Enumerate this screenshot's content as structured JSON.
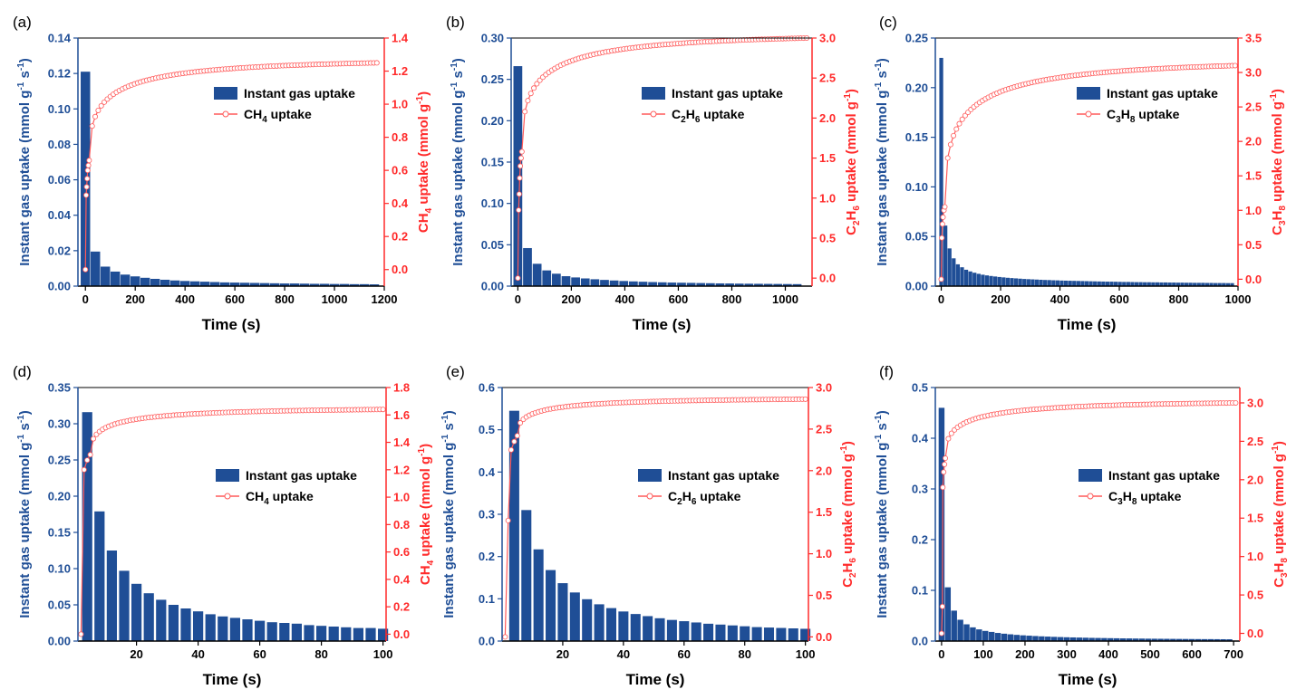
{
  "chart_data": [
    {
      "type": "bar",
      "panel_label": "(a)",
      "xlabel": "Time (s)",
      "ylabel_left": {
        "pre": "Instant gas uptake (mmol g",
        "sup1": "-1",
        "mid": " s",
        "sup2": "-1",
        "post": ")"
      },
      "ylabel_right": {
        "species": "CH",
        "sub": "4",
        "pre": " uptake (mmol g",
        "sup": "-1",
        "post": ")"
      },
      "xlim": [
        -30,
        1200
      ],
      "xticks": [
        0,
        200,
        400,
        600,
        800,
        1000,
        1200
      ],
      "ylim_left": [
        0,
        0.14
      ],
      "yticks_left": [
        0.0,
        0.02,
        0.04,
        0.06,
        0.08,
        0.1,
        0.12,
        0.14
      ],
      "ylim_right": [
        -0.1,
        1.4
      ],
      "yticks_right": [
        0.0,
        0.2,
        0.4,
        0.6,
        0.8,
        1.0,
        1.2,
        1.4
      ],
      "legend": {
        "bar": "Instant gas uptake",
        "line_species": "CH",
        "line_sub": "4",
        "line_post": " uptake",
        "position": "upper-right"
      },
      "bars": {
        "width": 38,
        "x_start": 0,
        "x_step": 40,
        "count": 30,
        "values": [
          0.121,
          0.0195,
          0.011,
          0.0082,
          0.0065,
          0.0055,
          0.0047,
          0.0041,
          0.0036,
          0.0032,
          0.0029,
          0.0027,
          0.0025,
          0.0023,
          0.0021,
          0.002,
          0.0019,
          0.0018,
          0.0017,
          0.0016,
          0.0015,
          0.0015,
          0.0014,
          0.0013,
          0.0013,
          0.0012,
          0.0012,
          0.0011,
          0.0011,
          0.001
        ]
      },
      "uptake_curve": {
        "x_max": 1170,
        "y_max": 1.25,
        "initial_points": [
          [
            0,
            0.0
          ],
          [
            3,
            0.45
          ],
          [
            5,
            0.5
          ],
          [
            7,
            0.55
          ],
          [
            9,
            0.6
          ],
          [
            12,
            0.63
          ],
          [
            15,
            0.66
          ]
        ],
        "markers": 95
      }
    },
    {
      "type": "bar",
      "panel_label": "(b)",
      "xlabel": "Time (s)",
      "ylabel_left": {
        "pre": "Instant gas uptake (mmol g",
        "sup1": "-1",
        "mid": " s",
        "sup2": "-1",
        "post": ")"
      },
      "ylabel_right": {
        "species": "C",
        "sub": "2",
        "species2": "H",
        "sub2": "6",
        "pre": " uptake (mmol g",
        "sup": "-1",
        "post": ")"
      },
      "xlim": [
        -25,
        1100
      ],
      "xticks": [
        0,
        200,
        400,
        600,
        800,
        1000
      ],
      "ylim_left": [
        0,
        0.3
      ],
      "yticks_left": [
        0.0,
        0.05,
        0.1,
        0.15,
        0.2,
        0.25,
        0.3
      ],
      "ylim_right": [
        -0.1,
        3.0
      ],
      "yticks_right": [
        0.0,
        0.5,
        1.0,
        1.5,
        2.0,
        2.5,
        3.0
      ],
      "legend": {
        "bar": "Instant gas uptake",
        "line_species": "C",
        "line_sub": "2",
        "line_species2": "H",
        "line_sub2": "6",
        "line_post": " uptake",
        "position": "upper-right"
      },
      "bars": {
        "width": 33,
        "x_start": 0,
        "x_step": 36,
        "count": 30,
        "values": [
          0.266,
          0.046,
          0.027,
          0.019,
          0.015,
          0.012,
          0.0105,
          0.0093,
          0.0083,
          0.0075,
          0.0068,
          0.0062,
          0.0057,
          0.0053,
          0.0049,
          0.0046,
          0.0043,
          0.0041,
          0.0039,
          0.0037,
          0.0035,
          0.0033,
          0.0032,
          0.003,
          0.0029,
          0.0028,
          0.0027,
          0.0026,
          0.0025,
          0.0024
        ]
      },
      "uptake_curve": {
        "x_max": 1080,
        "y_max": 3.0,
        "initial_points": [
          [
            0,
            0.0
          ],
          [
            3,
            0.85
          ],
          [
            5,
            1.05
          ],
          [
            7,
            1.25
          ],
          [
            9,
            1.4
          ],
          [
            12,
            1.5
          ],
          [
            15,
            1.58
          ]
        ],
        "markers": 95
      }
    },
    {
      "type": "bar",
      "panel_label": "(c)",
      "xlabel": "Time (s)",
      "ylabel_left": {
        "pre": "Instant gas uptake (mmol g",
        "sup1": "-1",
        "mid": " s",
        "sup2": "-1",
        "post": ")"
      },
      "ylabel_right": {
        "species": "C",
        "sub": "3",
        "species2": "H",
        "sub2": "8",
        "pre": " uptake (mmol g",
        "sup": "-1",
        "post": ")"
      },
      "xlim": [
        -20,
        1000
      ],
      "xticks": [
        0,
        200,
        400,
        600,
        800,
        1000
      ],
      "ylim_left": [
        0,
        0.25
      ],
      "yticks_left": [
        0.0,
        0.05,
        0.1,
        0.15,
        0.2,
        0.25
      ],
      "ylim_right": [
        -0.1,
        3.5
      ],
      "yticks_right": [
        0.0,
        0.5,
        1.0,
        1.5,
        2.0,
        2.5,
        3.0,
        3.5
      ],
      "legend": {
        "bar": "Instant gas uptake",
        "line_species": "C",
        "line_sub": "3",
        "line_species2": "H",
        "line_sub2": "8",
        "line_post": " uptake",
        "position": "upper-right"
      },
      "bars": {
        "width": 13,
        "x_start": 0,
        "x_step": 14,
        "count": 71,
        "values": [
          0.23,
          0.061,
          0.038,
          0.028,
          0.022,
          0.019,
          0.0165,
          0.0148,
          0.0135,
          0.0124,
          0.0115,
          0.0108,
          0.0102,
          0.0097,
          0.0092,
          0.0088,
          0.0084,
          0.0081,
          0.0078,
          0.0075,
          0.0072,
          0.007,
          0.0068,
          0.0066,
          0.0064,
          0.0062,
          0.0061,
          0.0059,
          0.0058,
          0.0056,
          0.0055,
          0.0054,
          0.0053,
          0.0052,
          0.0051,
          0.005,
          0.0049,
          0.0048,
          0.0047,
          0.0046,
          0.0045,
          0.0045,
          0.0044,
          0.0043,
          0.0042,
          0.0042,
          0.0041,
          0.004,
          0.004,
          0.0039,
          0.0039,
          0.0038,
          0.0038,
          0.0037,
          0.0037,
          0.0036,
          0.0036,
          0.0035,
          0.0035,
          0.0034,
          0.0034,
          0.0033,
          0.0033,
          0.0033,
          0.0032,
          0.0032,
          0.0031,
          0.0031,
          0.0031,
          0.003,
          0.003
        ]
      },
      "uptake_curve": {
        "x_max": 990,
        "y_max": 3.1,
        "initial_points": [
          [
            0,
            0.0
          ],
          [
            2,
            0.6
          ],
          [
            4,
            0.8
          ],
          [
            6,
            0.9
          ],
          [
            9,
            1.0
          ],
          [
            12,
            1.05
          ]
        ],
        "markers": 100
      }
    },
    {
      "type": "bar",
      "panel_label": "(d)",
      "xlabel": "Time (s)",
      "ylabel_left": {
        "pre": "Instant gas uptake (mmol g",
        "sup1": "-1",
        "mid": " s",
        "sup2": "-1",
        "post": ")"
      },
      "ylabel_right": {
        "species": "CH",
        "sub": "4",
        "pre": " uptake (mmol g",
        "sup": "-1",
        "post": ")"
      },
      "xlim": [
        1,
        101
      ],
      "xticks": [
        20,
        40,
        60,
        80,
        100
      ],
      "ylim_left": [
        0,
        0.35
      ],
      "yticks_left": [
        0.0,
        0.05,
        0.1,
        0.15,
        0.2,
        0.25,
        0.3,
        0.35
      ],
      "ylim_right": [
        -0.05,
        1.8
      ],
      "yticks_right": [
        0.0,
        0.2,
        0.4,
        0.6,
        0.8,
        1.0,
        1.2,
        1.4,
        1.6,
        1.8
      ],
      "legend": {
        "bar": "Instant gas uptake",
        "line_species": "CH",
        "line_sub": "4",
        "line_post": " uptake",
        "position": "upper-right"
      },
      "bars": {
        "width": 3.3,
        "x_start": 4,
        "x_step": 4,
        "count": 25,
        "values": [
          0.316,
          0.179,
          0.125,
          0.097,
          0.079,
          0.066,
          0.057,
          0.05,
          0.045,
          0.041,
          0.037,
          0.034,
          0.032,
          0.03,
          0.028,
          0.026,
          0.025,
          0.024,
          0.022,
          0.021,
          0.02,
          0.019,
          0.018,
          0.018,
          0.017
        ]
      },
      "uptake_curve": {
        "x_max": 100,
        "y_max": 1.64,
        "initial_points": [
          [
            2,
            0.0
          ],
          [
            3,
            1.2
          ],
          [
            4,
            1.27
          ],
          [
            5,
            1.31
          ]
        ],
        "markers": 95
      }
    },
    {
      "type": "bar",
      "panel_label": "(e)",
      "xlabel": "Time (s)",
      "ylabel_left": {
        "pre": "Instant gas uptake (mmol g",
        "sup1": "-1",
        "mid": " s",
        "sup2": "-1",
        "post": ")"
      },
      "ylabel_right": {
        "species": "C",
        "sub": "2",
        "species2": "H",
        "sub2": "6",
        "pre": " uptake (mmol g",
        "sup": "-1",
        "post": ")"
      },
      "xlim": [
        0,
        101
      ],
      "xticks": [
        20,
        40,
        60,
        80,
        100
      ],
      "ylim_left": [
        0,
        0.6
      ],
      "yticks_left": [
        0.0,
        0.1,
        0.2,
        0.3,
        0.4,
        0.5,
        0.6
      ],
      "ylim_right": [
        -0.05,
        3.0
      ],
      "yticks_right": [
        0.0,
        0.5,
        1.0,
        1.5,
        2.0,
        2.5,
        3.0
      ],
      "legend": {
        "bar": "Instant gas uptake",
        "line_species": "C",
        "line_sub": "2",
        "line_species2": "H",
        "line_sub2": "6",
        "line_post": " uptake",
        "position": "upper-right"
      },
      "bars": {
        "width": 3.3,
        "x_start": 4,
        "x_step": 4,
        "count": 25,
        "values": [
          0.545,
          0.31,
          0.217,
          0.168,
          0.137,
          0.115,
          0.099,
          0.087,
          0.078,
          0.07,
          0.064,
          0.059,
          0.054,
          0.05,
          0.047,
          0.044,
          0.041,
          0.039,
          0.037,
          0.035,
          0.033,
          0.032,
          0.031,
          0.03,
          0.029
        ]
      },
      "uptake_curve": {
        "x_max": 100,
        "y_max": 2.86,
        "initial_points": [
          [
            1,
            0.0
          ],
          [
            2,
            1.4
          ],
          [
            3,
            2.25
          ],
          [
            4,
            2.35
          ],
          [
            5,
            2.42
          ]
        ],
        "markers": 95
      }
    },
    {
      "type": "bar",
      "panel_label": "(f)",
      "xlabel": "Time (s)",
      "ylabel_left": {
        "pre": "Instant gas uptake (mmol g",
        "sup1": "-1",
        "mid": " s",
        "sup2": "-1",
        "post": ")"
      },
      "ylabel_right": {
        "species": "C",
        "sub": "3",
        "species2": "H",
        "sub2": "8",
        "pre": " uptake (mmol g",
        "sup": "-1",
        "post": ")"
      },
      "xlim": [
        -15,
        715
      ],
      "xticks": [
        0,
        100,
        200,
        300,
        400,
        500,
        600,
        700
      ],
      "ylim_left": [
        0,
        0.5
      ],
      "yticks_left": [
        0.0,
        0.1,
        0.2,
        0.3,
        0.4,
        0.5
      ],
      "ylim_right": [
        -0.1,
        3.2
      ],
      "yticks_right": [
        0.0,
        0.5,
        1.0,
        1.5,
        2.0,
        2.5,
        3.0
      ],
      "legend": {
        "bar": "Instant gas uptake",
        "line_species": "C",
        "line_sub": "3",
        "line_species2": "H",
        "line_sub2": "8",
        "line_post": " uptake",
        "position": "upper-right"
      },
      "bars": {
        "width": 14,
        "x_start": 0,
        "x_step": 15,
        "count": 47,
        "values": [
          0.46,
          0.106,
          0.06,
          0.042,
          0.033,
          0.027,
          0.023,
          0.02,
          0.018,
          0.016,
          0.0145,
          0.0133,
          0.0122,
          0.0113,
          0.0106,
          0.0099,
          0.0093,
          0.0088,
          0.0083,
          0.0079,
          0.0075,
          0.0072,
          0.0069,
          0.0066,
          0.0063,
          0.0061,
          0.0059,
          0.0057,
          0.0055,
          0.0053,
          0.0052,
          0.005,
          0.0049,
          0.0047,
          0.0046,
          0.0045,
          0.0044,
          0.0043,
          0.0042,
          0.0041,
          0.004,
          0.0039,
          0.0038,
          0.0038,
          0.0037,
          0.0036,
          0.0035
        ]
      },
      "uptake_curve": {
        "x_max": 705,
        "y_max": 3.0,
        "initial_points": [
          [
            0,
            0.0
          ],
          [
            2,
            0.35
          ],
          [
            3,
            1.9
          ],
          [
            5,
            2.1
          ],
          [
            7,
            2.2
          ],
          [
            9,
            2.28
          ]
        ],
        "markers": 95
      }
    }
  ],
  "colors": {
    "bar": "#1f4e96",
    "curve": "#ff5a5a",
    "right_axis": "#ff2a2a",
    "left_axis": "#1f4e96"
  }
}
